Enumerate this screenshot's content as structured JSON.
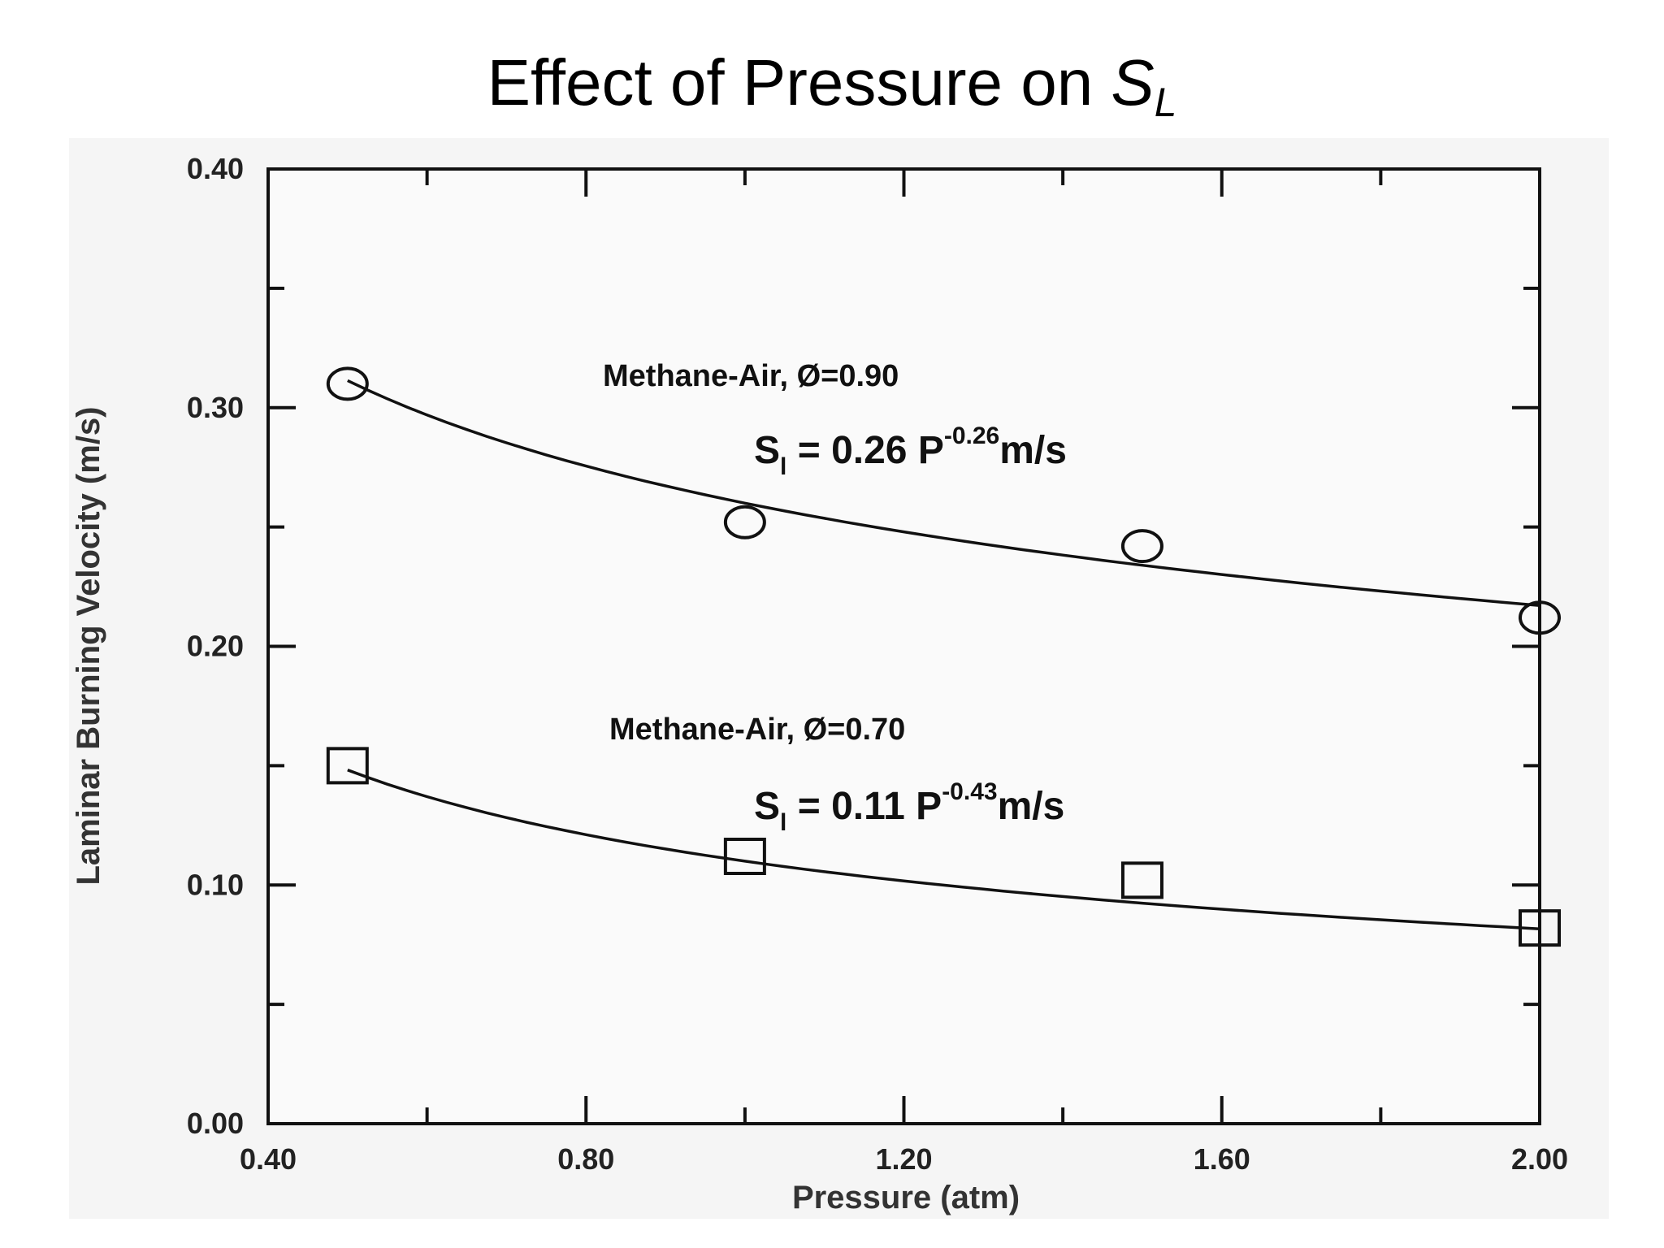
{
  "slide": {
    "title_prefix": "Effect of Pressure on ",
    "title_symbol": "S",
    "title_subscript": "L"
  },
  "chart_data": {
    "type": "scatter",
    "title": "",
    "xlabel": "Pressure (atm)",
    "ylabel": "Laminar Burning Velocity (m/s)",
    "xlim": [
      0.4,
      2.0
    ],
    "ylim": [
      0.0,
      0.4
    ],
    "x_ticks": [
      "0.40",
      "0.80",
      "1.20",
      "1.60",
      "2.00"
    ],
    "y_ticks": [
      "0.00",
      "0.10",
      "0.20",
      "0.30",
      "0.40"
    ],
    "x_tick_values": [
      0.4,
      0.8,
      1.2,
      1.6,
      2.0
    ],
    "y_tick_values": [
      0.0,
      0.1,
      0.2,
      0.3,
      0.4
    ],
    "grid": false,
    "series": [
      {
        "name": "Methane-Air, Ø=0.90",
        "marker": "circle",
        "x": [
          0.5,
          1.0,
          1.5,
          2.0
        ],
        "y": [
          0.31,
          0.252,
          0.242,
          0.212
        ],
        "fit": {
          "coefficient": 0.26,
          "exponent": -0.26
        },
        "equation": {
          "s": "S",
          "sub": "l",
          "mid": " = 0.26  P",
          "exp": "-0.26",
          "unit": "m/s"
        }
      },
      {
        "name": "Methane-Air, Ø=0.70",
        "marker": "square",
        "x": [
          0.5,
          1.0,
          1.5,
          2.0
        ],
        "y": [
          0.15,
          0.112,
          0.102,
          0.082
        ],
        "fit": {
          "coefficient": 0.11,
          "exponent": -0.43
        },
        "equation": {
          "s": "S",
          "sub": "l",
          "mid": " = 0.11 P",
          "exp": "-0.43",
          "unit": "m/s"
        }
      }
    ]
  }
}
